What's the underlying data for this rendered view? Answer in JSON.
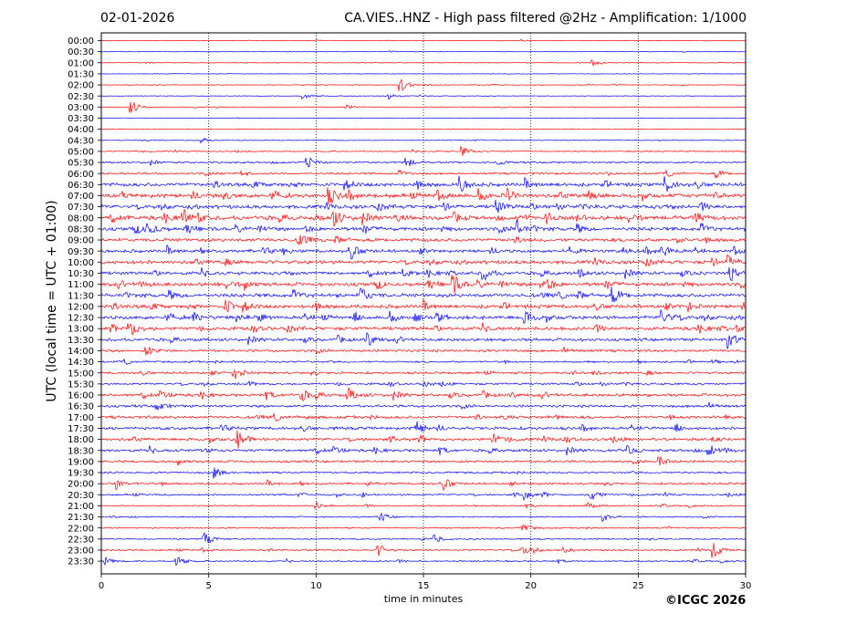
{
  "header": {
    "date": "02-01-2026",
    "title": "CA.VIES..HNZ - High pass filtered @2Hz - Amplification: 1/1000"
  },
  "footer": {
    "copyright": "©ICGC 2026"
  },
  "colors": {
    "trace_a": "#ff0000",
    "trace_b": "#0000ff",
    "axis": "#000000",
    "grid": "#000000",
    "background": "#ffffff"
  },
  "chart_data": {
    "type": "line",
    "title": "CA.VIES..HNZ - High pass filtered @2Hz - Amplification: 1/1000",
    "xlabel": "time in minutes",
    "ylabel": "UTC (local time = UTC + 01:00)",
    "xlim": [
      0,
      30
    ],
    "x_ticks": [
      0,
      5,
      10,
      15,
      20,
      25,
      30
    ],
    "x_tick_labels": [
      "0",
      "5",
      "10",
      "15",
      "20",
      "25",
      "30"
    ],
    "grid": "vertical dotted at 5, 10, 15, 20, 25",
    "row_labels": [
      "00:00",
      "00:30",
      "01:00",
      "01:30",
      "02:00",
      "02:30",
      "03:00",
      "03:30",
      "04:00",
      "04:30",
      "05:00",
      "05:30",
      "06:00",
      "06:30",
      "07:00",
      "07:30",
      "08:00",
      "08:30",
      "09:00",
      "09:30",
      "10:00",
      "10:30",
      "11:00",
      "11:30",
      "12:00",
      "12:30",
      "13:00",
      "13:30",
      "14:00",
      "14:30",
      "15:00",
      "15:30",
      "16:00",
      "16:30",
      "17:00",
      "17:30",
      "18:00",
      "18:30",
      "19:00",
      "19:30",
      "20:00",
      "20:30",
      "21:00",
      "21:30",
      "22:00",
      "22:30",
      "23:00",
      "23:30"
    ],
    "row_colors": [
      "red",
      "blue",
      "red",
      "blue",
      "red",
      "blue",
      "red",
      "blue",
      "red",
      "blue",
      "red",
      "blue",
      "red",
      "blue",
      "red",
      "blue",
      "red",
      "blue",
      "red",
      "blue",
      "red",
      "blue",
      "red",
      "blue",
      "red",
      "blue",
      "red",
      "blue",
      "red",
      "blue",
      "red",
      "blue",
      "red",
      "blue",
      "red",
      "blue",
      "red",
      "blue",
      "red",
      "blue",
      "red",
      "blue",
      "red",
      "blue",
      "red",
      "blue",
      "red",
      "blue"
    ],
    "noise_level": [
      0.3,
      0.25,
      0.3,
      0.25,
      0.3,
      0.3,
      0.3,
      0.25,
      0.3,
      0.35,
      0.5,
      0.8,
      0.9,
      1.6,
      1.8,
      1.6,
      1.8,
      1.6,
      1.5,
      1.4,
      1.6,
      1.4,
      1.6,
      1.6,
      1.6,
      1.6,
      1.5,
      1.3,
      1.1,
      0.8,
      1.0,
      1.0,
      1.3,
      1.1,
      1.2,
      1.3,
      1.3,
      1.2,
      1.0,
      0.8,
      0.9,
      0.8,
      0.6,
      0.6,
      0.6,
      0.6,
      0.7,
      0.6
    ],
    "events": [
      {
        "row": 2,
        "t": 22.9,
        "amp": 4
      },
      {
        "row": 4,
        "t": 13.9,
        "amp": 9
      },
      {
        "row": 5,
        "t": 9.4,
        "amp": 4
      },
      {
        "row": 5,
        "t": 13.4,
        "amp": 5
      },
      {
        "row": 6,
        "t": 1.4,
        "amp": 8
      },
      {
        "row": 6,
        "t": 11.4,
        "amp": 3
      },
      {
        "row": 9,
        "t": 4.7,
        "amp": 3
      },
      {
        "row": 10,
        "t": 16.8,
        "amp": 6
      },
      {
        "row": 11,
        "t": 9.6,
        "amp": 6
      },
      {
        "row": 11,
        "t": 14.2,
        "amp": 6
      },
      {
        "row": 12,
        "t": 28.6,
        "amp": 5
      },
      {
        "row": 13,
        "t": 16.7,
        "amp": 9
      },
      {
        "row": 13,
        "t": 26.3,
        "amp": 8
      },
      {
        "row": 14,
        "t": 10.6,
        "amp": 9
      },
      {
        "row": 15,
        "t": 18.4,
        "amp": 7
      },
      {
        "row": 16,
        "t": 10.8,
        "amp": 10
      },
      {
        "row": 16,
        "t": 3.8,
        "amp": 9
      },
      {
        "row": 17,
        "t": 2.1,
        "amp": 10
      },
      {
        "row": 17,
        "t": 19.3,
        "amp": 8
      },
      {
        "row": 18,
        "t": 9.2,
        "amp": 6
      },
      {
        "row": 19,
        "t": 11.6,
        "amp": 8
      },
      {
        "row": 19,
        "t": 26.1,
        "amp": 8
      },
      {
        "row": 20,
        "t": 29.2,
        "amp": 7
      },
      {
        "row": 21,
        "t": 17.8,
        "amp": 8
      },
      {
        "row": 21,
        "t": 29.3,
        "amp": 8
      },
      {
        "row": 22,
        "t": 16.4,
        "amp": 10
      },
      {
        "row": 22,
        "t": 20.5,
        "amp": 9
      },
      {
        "row": 23,
        "t": 12.1,
        "amp": 9
      },
      {
        "row": 23,
        "t": 23.8,
        "amp": 9
      },
      {
        "row": 24,
        "t": 5.8,
        "amp": 8
      },
      {
        "row": 25,
        "t": 26.1,
        "amp": 10
      },
      {
        "row": 25,
        "t": 19.7,
        "amp": 8
      },
      {
        "row": 26,
        "t": 1.3,
        "amp": 10
      },
      {
        "row": 27,
        "t": 29.2,
        "amp": 10
      },
      {
        "row": 27,
        "t": 12.4,
        "amp": 6
      },
      {
        "row": 28,
        "t": 2.1,
        "amp": 6
      },
      {
        "row": 30,
        "t": 6.3,
        "amp": 5
      },
      {
        "row": 32,
        "t": 9.3,
        "amp": 7
      },
      {
        "row": 32,
        "t": 11.5,
        "amp": 7
      },
      {
        "row": 33,
        "t": 2.6,
        "amp": 6
      },
      {
        "row": 35,
        "t": 14.6,
        "amp": 10
      },
      {
        "row": 36,
        "t": 6.4,
        "amp": 9
      },
      {
        "row": 36,
        "t": 18.2,
        "amp": 7
      },
      {
        "row": 37,
        "t": 28.3,
        "amp": 8
      },
      {
        "row": 38,
        "t": 26.0,
        "amp": 6
      },
      {
        "row": 39,
        "t": 5.3,
        "amp": 6
      },
      {
        "row": 40,
        "t": 0.7,
        "amp": 6
      },
      {
        "row": 40,
        "t": 16.0,
        "amp": 6
      },
      {
        "row": 41,
        "t": 22.8,
        "amp": 8
      },
      {
        "row": 41,
        "t": 19.7,
        "amp": 5
      },
      {
        "row": 42,
        "t": 10.0,
        "amp": 4
      },
      {
        "row": 42,
        "t": 22.6,
        "amp": 4
      },
      {
        "row": 43,
        "t": 13.0,
        "amp": 5
      },
      {
        "row": 43,
        "t": 23.4,
        "amp": 5
      },
      {
        "row": 44,
        "t": 19.6,
        "amp": 5
      },
      {
        "row": 45,
        "t": 4.8,
        "amp": 8
      },
      {
        "row": 45,
        "t": 15.5,
        "amp": 5
      },
      {
        "row": 46,
        "t": 12.9,
        "amp": 7
      },
      {
        "row": 46,
        "t": 19.6,
        "amp": 6
      },
      {
        "row": 46,
        "t": 28.5,
        "amp": 9
      },
      {
        "row": 47,
        "t": 3.5,
        "amp": 6
      },
      {
        "row": 47,
        "t": 0.2,
        "amp": 4
      }
    ]
  }
}
